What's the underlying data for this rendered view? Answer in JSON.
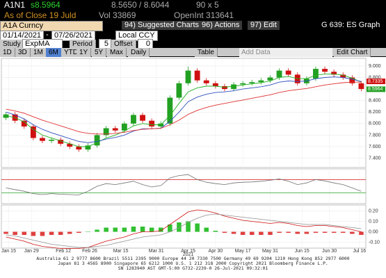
{
  "ui": {
    "quote": {
      "ticker": "A1N1",
      "last": "s8.5964",
      "bidask": "8.5650 / 8.6044",
      "size": "90 x 5"
    },
    "status": {
      "asof": "As of Close 19 Juld",
      "vol": "Vol 33869",
      "oi": "OpenInt 313641"
    },
    "toolbar": {
      "security": "A1A Curncy",
      "suggested": "94) Suggested Charts",
      "actions": "96) Actions",
      "edit": "97) Edit",
      "page": "G 639: ES Graph"
    },
    "range": {
      "start": "01/14/2021",
      "sep": "-",
      "end": "07/26/2021",
      "ccy": "Local CCY"
    },
    "study": {
      "label": "Study",
      "name": "ExpMA",
      "period_label": "Period",
      "period": "5",
      "offset_label": "Offset",
      "offset": "0"
    },
    "periods": [
      "1D",
      "3D",
      "1M",
      "6M",
      "YTD",
      "1Y",
      "5Y",
      "Max"
    ],
    "frequency": "Daily",
    "table": "Table",
    "add_data": "Add Data",
    "edit_chart": "Edit Chart",
    "footer": [
      "Australia 61 2 9777 8600 Brazil 5511 2395 9000 Europe 44 20 7330 7500 Germany 49 69 9204 1210 Hong Kong 852 2977 6000",
      "Japan 81 3 4565 8900      Singapore 65 6212 1000      U.S. 1 212 318 2000      Copyright 2021 Bloomberg Finance L.P.",
      "SN 1283940 AST  GMT-5:00 G732-2239-0 26-Jul-2021 09:32:01"
    ]
  },
  "chart_data": {
    "type": "candlestick",
    "open": [
      8.1,
      8.16,
      8.05,
      7.95,
      7.75,
      7.7,
      7.72,
      7.65,
      7.6,
      7.55,
      7.62,
      7.8,
      7.92,
      7.88,
      8.0,
      8.15,
      8.05,
      7.95,
      8.0,
      8.45,
      8.7,
      8.92,
      8.75,
      8.7,
      8.65,
      8.6,
      8.68,
      8.7,
      8.72,
      8.75,
      8.8,
      8.92,
      8.85,
      8.7,
      8.78,
      8.95,
      8.9,
      8.85,
      8.8,
      8.7
    ],
    "high": [
      8.2,
      8.2,
      8.09,
      7.99,
      7.79,
      7.76,
      7.76,
      7.69,
      7.64,
      7.66,
      7.84,
      7.96,
      7.96,
      8.04,
      8.19,
      8.19,
      8.09,
      8.04,
      8.49,
      8.74,
      8.99,
      8.96,
      8.79,
      8.74,
      8.69,
      8.72,
      8.74,
      8.76,
      8.79,
      8.84,
      8.96,
      8.96,
      8.89,
      8.82,
      8.99,
      8.99,
      8.94,
      8.89,
      8.84,
      8.74
    ],
    "low": [
      8.06,
      8.01,
      7.91,
      7.71,
      7.66,
      7.66,
      7.61,
      7.56,
      7.51,
      7.51,
      7.58,
      7.76,
      7.84,
      7.84,
      7.96,
      8.01,
      7.91,
      7.91,
      7.96,
      8.41,
      8.66,
      8.71,
      8.66,
      8.61,
      8.56,
      8.56,
      8.64,
      8.66,
      8.68,
      8.71,
      8.76,
      8.81,
      8.66,
      8.66,
      8.74,
      8.86,
      8.81,
      8.76,
      8.66,
      8.56
    ],
    "close": [
      8.16,
      8.05,
      7.95,
      7.75,
      7.7,
      7.72,
      7.65,
      7.6,
      7.55,
      7.62,
      7.8,
      7.92,
      7.88,
      8.0,
      8.15,
      8.05,
      7.95,
      8.0,
      8.45,
      8.7,
      8.92,
      8.75,
      8.7,
      8.65,
      8.6,
      8.68,
      8.7,
      8.72,
      8.75,
      8.8,
      8.92,
      8.85,
      8.7,
      8.78,
      8.95,
      8.9,
      8.85,
      8.8,
      8.7,
      8.6
    ],
    "up_color": "#22a022",
    "down_color": "#d01010",
    "series": [
      {
        "color": "#20b020",
        "values": [
          8.14,
          8.1,
          8.03,
          7.9,
          7.8,
          7.75,
          7.7,
          7.65,
          7.6,
          7.6,
          7.67,
          7.75,
          7.8,
          7.87,
          7.96,
          8.0,
          7.98,
          7.98,
          8.14,
          8.35,
          8.55,
          8.62,
          8.65,
          8.65,
          8.63,
          8.65,
          8.67,
          8.69,
          8.71,
          8.74,
          8.8,
          8.82,
          8.78,
          8.78,
          8.84,
          8.86,
          8.86,
          8.84,
          8.79,
          8.72
        ]
      },
      {
        "color": "#3050c0",
        "values": [
          8.2,
          8.15,
          8.08,
          7.98,
          7.9,
          7.84,
          7.79,
          7.74,
          7.69,
          7.67,
          7.69,
          7.73,
          7.76,
          7.8,
          7.87,
          7.91,
          7.91,
          7.92,
          8.04,
          8.2,
          8.38,
          8.46,
          8.51,
          8.54,
          8.55,
          8.57,
          8.6,
          8.62,
          8.64,
          8.67,
          8.72,
          8.74,
          8.73,
          8.74,
          8.78,
          8.8,
          8.81,
          8.8,
          8.77,
          8.73
        ]
      },
      {
        "color": "#e03030",
        "values": [
          8.25,
          8.22,
          8.18,
          8.12,
          8.06,
          8.01,
          7.96,
          7.91,
          7.86,
          7.83,
          7.82,
          7.82,
          7.83,
          7.85,
          7.88,
          7.9,
          7.91,
          7.92,
          7.98,
          8.06,
          8.16,
          8.23,
          8.28,
          8.32,
          8.35,
          8.38,
          8.41,
          8.44,
          8.47,
          8.5,
          8.54,
          8.57,
          8.59,
          8.61,
          8.64,
          8.67,
          8.69,
          8.71,
          8.72,
          8.72
        ]
      }
    ],
    "last_flags": [
      {
        "value": 8.7335,
        "color": "#d01010"
      },
      {
        "value": 8.5964,
        "color": "#22a022"
      }
    ],
    "ylim": [
      7.25,
      9.12
    ],
    "yticks": [
      {
        "value": 9,
        "label": "9.000"
      },
      {
        "value": 8.8,
        "label": "8.800"
      },
      {
        "value": 8.6,
        "label": "8.600"
      },
      {
        "value": 8.4,
        "label": "8.400"
      },
      {
        "value": 8.2,
        "label": "8.200"
      },
      {
        "value": 8,
        "label": "8.000"
      },
      {
        "value": 7.8,
        "label": "7.800"
      },
      {
        "value": 7.6,
        "label": "7.600"
      },
      {
        "value": 7.4,
        "label": "7.400"
      }
    ],
    "xlim": [
      -0.5,
      39.5
    ],
    "xticks": [
      {
        "value": 0.3,
        "label": "Jan 15"
      },
      {
        "value": 2.8,
        "label": "Jan 29"
      },
      {
        "value": 6.3,
        "label": "Feb 12"
      },
      {
        "value": 9.2,
        "label": "Feb 26"
      },
      {
        "value": 12.6,
        "label": "Mar 15"
      },
      {
        "value": 16.5,
        "label": "Mar 31"
      },
      {
        "value": 20,
        "label": "Apr 15"
      },
      {
        "value": 23,
        "label": "Apr 30"
      },
      {
        "value": 26,
        "label": "May 17"
      },
      {
        "value": 29,
        "label": "May 31"
      },
      {
        "value": 32.5,
        "label": "Jun 15"
      },
      {
        "value": 35.5,
        "label": "Jun 30"
      },
      {
        "value": 38.8,
        "label": "Jul 16"
      }
    ],
    "x_year": "2021",
    "rsi": {
      "color": "#707070",
      "values": [
        45,
        40,
        35,
        28,
        25,
        28,
        26,
        25,
        24,
        35,
        50,
        58,
        55,
        60,
        65,
        55,
        48,
        52,
        75,
        82,
        85,
        70,
        62,
        58,
        55,
        60,
        62,
        63,
        65,
        68,
        72,
        65,
        55,
        60,
        70,
        66,
        60,
        55,
        45,
        35
      ],
      "ylim": [
        0,
        100
      ],
      "levels": [
        {
          "value": 70,
          "color": "#d01010"
        },
        {
          "value": 30,
          "color": "#22a022"
        }
      ]
    },
    "macd": {
      "ylim": [
        -0.15,
        0.25
      ],
      "yticks": [
        {
          "value": 0.2,
          "label": "0.20"
        },
        {
          "value": 0.1,
          "label": "0.10"
        },
        {
          "value": 0,
          "label": "0.00"
        },
        {
          "value": -0.1,
          "label": "-0.10"
        }
      ],
      "line": {
        "color": "#d01010",
        "values": [
          -0.05,
          -0.07,
          -0.09,
          -0.12,
          -0.14,
          -0.15,
          -0.16,
          -0.16,
          -0.16,
          -0.15,
          -0.12,
          -0.09,
          -0.07,
          -0.05,
          -0.02,
          0.0,
          0.0,
          0.01,
          0.07,
          0.13,
          0.19,
          0.21,
          0.2,
          0.18,
          0.15,
          0.13,
          0.11,
          0.1,
          0.09,
          0.08,
          0.09,
          0.08,
          0.06,
          0.05,
          0.06,
          0.06,
          0.05,
          0.04,
          0.02,
          0.0
        ]
      },
      "signal": {
        "color": "#909090",
        "values": [
          -0.03,
          -0.04,
          -0.06,
          -0.08,
          -0.1,
          -0.12,
          -0.13,
          -0.14,
          -0.15,
          -0.15,
          -0.14,
          -0.13,
          -0.11,
          -0.09,
          -0.07,
          -0.05,
          -0.04,
          -0.03,
          0.0,
          0.04,
          0.09,
          0.13,
          0.16,
          0.17,
          0.16,
          0.15,
          0.14,
          0.13,
          0.12,
          0.11,
          0.1,
          0.09,
          0.08,
          0.07,
          0.07,
          0.07,
          0.06,
          0.05,
          0.04,
          0.03
        ]
      },
      "histogram": {
        "up_color": "#30c030",
        "down_color": "#e04040",
        "values": [
          -0.02,
          -0.03,
          -0.03,
          -0.04,
          -0.04,
          -0.03,
          -0.03,
          -0.02,
          -0.01,
          0.0,
          0.02,
          0.04,
          0.04,
          0.04,
          0.05,
          0.05,
          0.04,
          0.04,
          0.07,
          0.09,
          0.1,
          0.08,
          0.04,
          0.01,
          -0.01,
          -0.02,
          -0.03,
          -0.03,
          -0.03,
          -0.03,
          -0.01,
          -0.01,
          -0.02,
          -0.02,
          -0.01,
          -0.01,
          -0.01,
          -0.01,
          -0.02,
          -0.03
        ]
      }
    }
  }
}
